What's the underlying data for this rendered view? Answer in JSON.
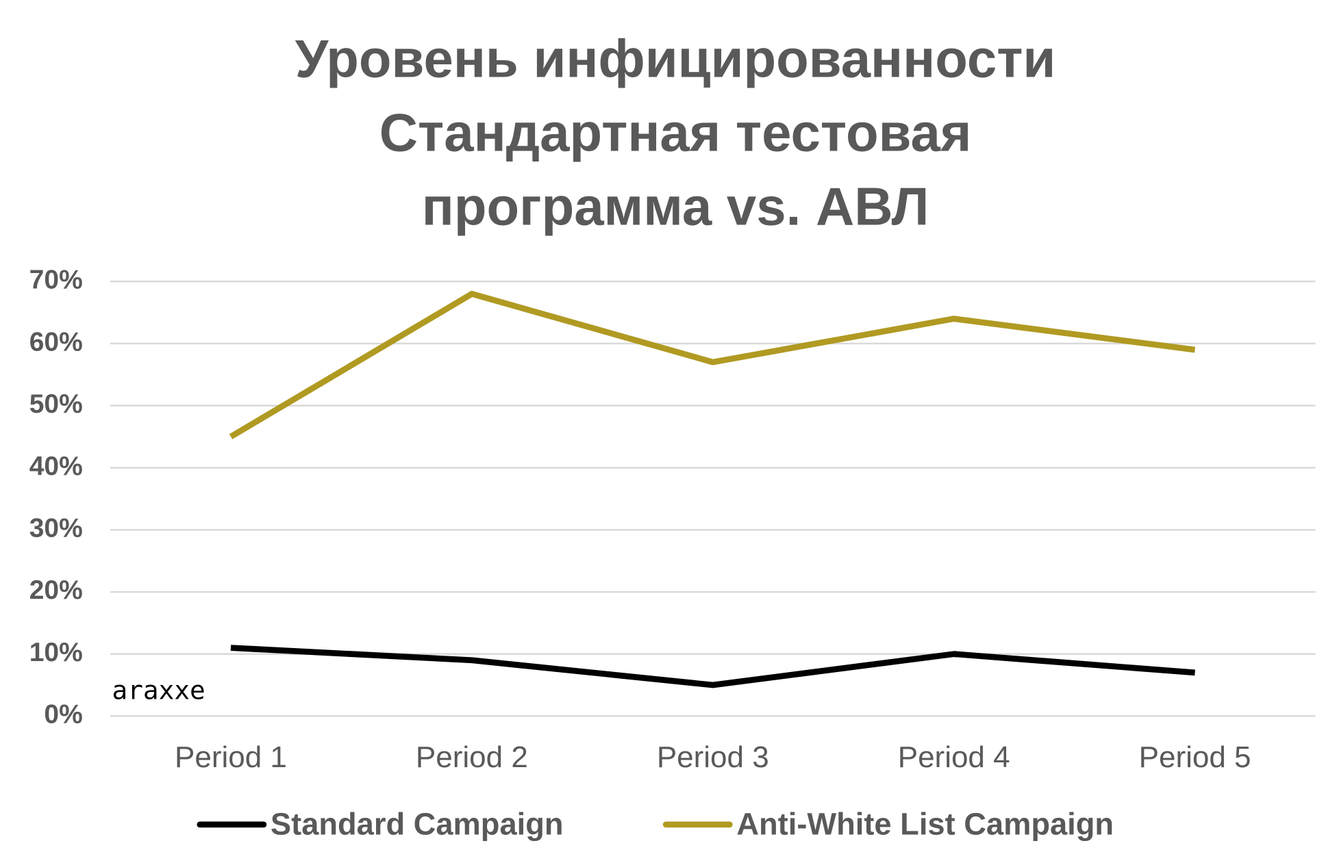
{
  "chart_data": {
    "type": "line",
    "title": [
      "Уровень инфицированности",
      "Стандартная тестовая",
      "программа vs. АВЛ"
    ],
    "categories": [
      "Period 1",
      "Period 2",
      "Period 3",
      "Period 4",
      "Period 5"
    ],
    "series": [
      {
        "name": "Standard Campaign",
        "color": "#000000",
        "values": [
          11,
          9,
          5,
          10,
          7
        ]
      },
      {
        "name": "Anti-White List Campaign",
        "color": "#b09a22",
        "values": [
          45,
          68,
          57,
          64,
          59
        ]
      }
    ],
    "ylim": [
      0,
      70
    ],
    "yticks": [
      {
        "value": 0,
        "label": "0%"
      },
      {
        "value": 10,
        "label": "10%"
      },
      {
        "value": 20,
        "label": "20%"
      },
      {
        "value": 30,
        "label": "30%"
      },
      {
        "value": 40,
        "label": "40%"
      },
      {
        "value": 50,
        "label": "50%"
      },
      {
        "value": 60,
        "label": "60%"
      },
      {
        "value": 70,
        "label": "70%"
      }
    ],
    "grid": true,
    "legend": "bottom",
    "watermark": "araxxe"
  }
}
